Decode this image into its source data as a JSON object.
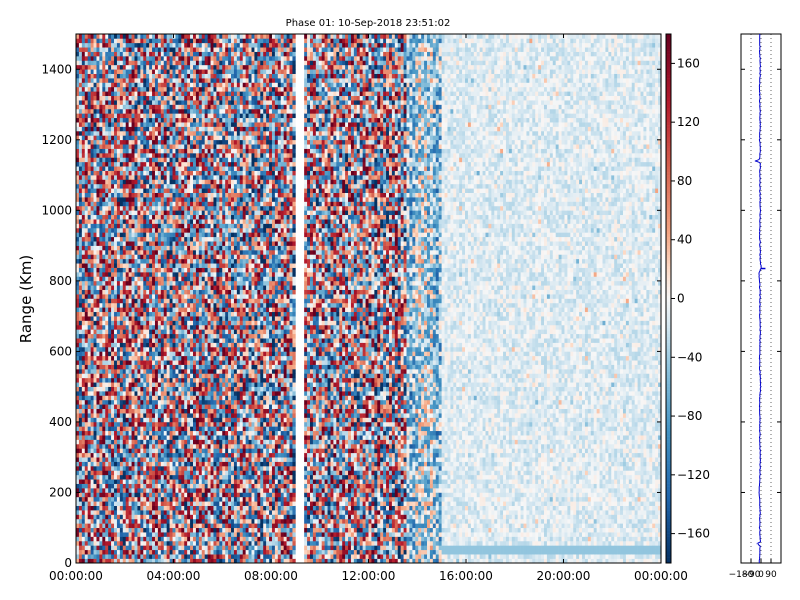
{
  "chart_data": [
    {
      "type": "heatmap",
      "title": "Phase 01: 10-Sep-2018 23:51:02",
      "xlabel": "",
      "ylabel": "Range (Km)",
      "xlim": [
        "00:00:00",
        "24:00:00"
      ],
      "ylim": [
        0,
        1500
      ],
      "x_ticks": [
        "00:00:00",
        "04:00:00",
        "08:00:00",
        "12:00:00",
        "16:00:00",
        "20:00:00",
        "00:00:00"
      ],
      "y_ticks": [
        0,
        200,
        400,
        600,
        800,
        1000,
        1200,
        1400
      ],
      "colormap": "RdBu_r",
      "colorbar": {
        "range": [
          -180,
          180
        ],
        "ticks": [
          160,
          120,
          80,
          40,
          0,
          -40,
          -80,
          -120,
          -160
        ],
        "tick_labels": [
          "160",
          "120",
          "80",
          "40",
          "0",
          "−40",
          "−80",
          "−120",
          "−160"
        ]
      },
      "data_gaps_hours": [
        [
          9.05,
          9.3
        ]
      ],
      "regions": [
        {
          "hours": [
            0,
            13.6
          ],
          "phase_deg": "random, full range -180 to 180 (noise)"
        },
        {
          "hours": [
            13.6,
            15.0
          ],
          "phase_deg": "transition, mostly -120 to 40"
        },
        {
          "hours": [
            15.0,
            24.0
          ],
          "phase_deg": "near 0, about -40 to 20"
        }
      ]
    },
    {
      "type": "line",
      "xlim": [
        -180,
        180
      ],
      "ylim": [
        0,
        1500
      ],
      "x_ticks": [
        -180,
        -90,
        0,
        90
      ],
      "x_tick_labels": [
        "−180",
        "−90",
        "0",
        "90"
      ],
      "y_ticks": [
        0,
        200,
        400,
        600,
        800,
        1000,
        1200,
        1400
      ],
      "grid_x": true,
      "series": [
        {
          "color": "#0000cc",
          "profile": [
            [
              0,
              -14
            ],
            [
              50,
              -10
            ],
            [
              55,
              -38
            ],
            [
              60,
              -5
            ],
            [
              100,
              -12
            ],
            [
              150,
              -8
            ],
            [
              200,
              -16
            ],
            [
              250,
              -10
            ],
            [
              300,
              -6
            ],
            [
              350,
              -12
            ],
            [
              400,
              -9
            ],
            [
              450,
              -14
            ],
            [
              500,
              -4
            ],
            [
              550,
              -11
            ],
            [
              600,
              -13
            ],
            [
              650,
              -7
            ],
            [
              700,
              -10
            ],
            [
              750,
              -9
            ],
            [
              800,
              -12
            ],
            [
              820,
              -18
            ],
            [
              830,
              -8
            ],
            [
              840,
              4
            ],
            [
              850,
              -6
            ],
            [
              900,
              -9
            ],
            [
              950,
              -12
            ],
            [
              1000,
              -7
            ],
            [
              1050,
              -9
            ],
            [
              1100,
              -11
            ],
            [
              1135,
              -6
            ],
            [
              1140,
              -45
            ],
            [
              1145,
              -10
            ],
            [
              1180,
              -8
            ],
            [
              1200,
              -12
            ],
            [
              1250,
              -7
            ],
            [
              1300,
              -10
            ],
            [
              1350,
              -12
            ],
            [
              1400,
              -7
            ],
            [
              1450,
              -11
            ],
            [
              1500,
              -9
            ]
          ],
          "spikes": [
            [
              55,
              -40
            ],
            [
              835,
              40
            ],
            [
              1140,
              -50
            ]
          ]
        }
      ]
    }
  ],
  "colors": {
    "line": "#0000cc",
    "grid": "#000000"
  }
}
